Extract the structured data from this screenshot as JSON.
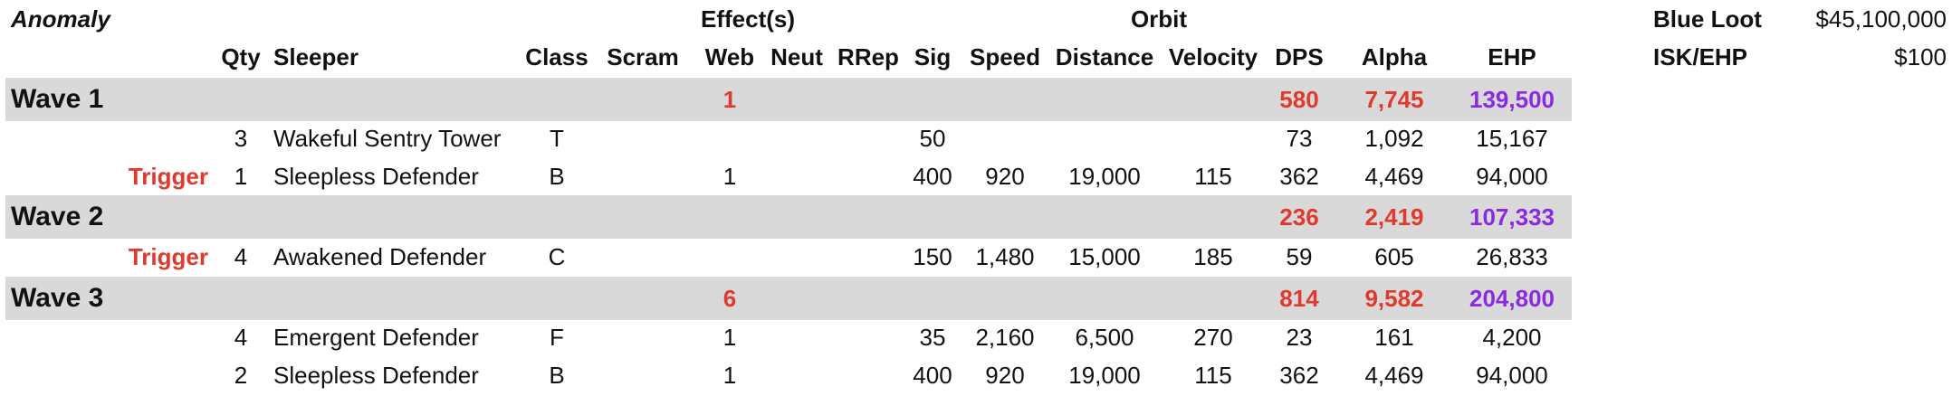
{
  "header": {
    "anomaly": "Anomaly",
    "effects": "Effect(s)",
    "orbit": "Orbit",
    "columns": {
      "qty": "Qty",
      "sleeper": "Sleeper",
      "class": "Class",
      "scram": "Scram",
      "web": "Web",
      "neut": "Neut",
      "rrep": "RRep",
      "sig": "Sig",
      "speed": "Speed",
      "distance": "Distance",
      "velocity": "Velocity",
      "dps": "DPS",
      "alpha": "Alpha",
      "ehp": "EHP"
    }
  },
  "summary": {
    "blue_loot_label": "Blue Loot",
    "blue_loot_value": "$45,100,000",
    "isk_ehp_label": "ISK/EHP",
    "isk_ehp_value": "$100"
  },
  "waves": [
    {
      "name": "Wave 1",
      "web": "1",
      "dps": "580",
      "alpha": "7,745",
      "ehp": "139,500",
      "rows": [
        {
          "trigger": "",
          "qty": "3",
          "sleeper": "Wakeful Sentry Tower",
          "class": "T",
          "web": "",
          "sig": "50",
          "speed": "",
          "distance": "",
          "velocity": "",
          "dps": "73",
          "alpha": "1,092",
          "ehp": "15,167"
        },
        {
          "trigger": "Trigger",
          "qty": "1",
          "sleeper": "Sleepless Defender",
          "class": "B",
          "web": "1",
          "sig": "400",
          "speed": "920",
          "distance": "19,000",
          "velocity": "115",
          "dps": "362",
          "alpha": "4,469",
          "ehp": "94,000"
        }
      ]
    },
    {
      "name": "Wave 2",
      "web": "",
      "dps": "236",
      "alpha": "2,419",
      "ehp": "107,333",
      "rows": [
        {
          "trigger": "Trigger",
          "qty": "4",
          "sleeper": "Awakened Defender",
          "class": "C",
          "web": "",
          "sig": "150",
          "speed": "1,480",
          "distance": "15,000",
          "velocity": "185",
          "dps": "59",
          "alpha": "605",
          "ehp": "26,833"
        }
      ]
    },
    {
      "name": "Wave 3",
      "web": "6",
      "dps": "814",
      "alpha": "9,582",
      "ehp": "204,800",
      "rows": [
        {
          "trigger": "",
          "qty": "4",
          "sleeper": "Emergent Defender",
          "class": "F",
          "web": "1",
          "sig": "35",
          "speed": "2,160",
          "distance": "6,500",
          "velocity": "270",
          "dps": "23",
          "alpha": "161",
          "ehp": "4,200"
        },
        {
          "trigger": "",
          "qty": "2",
          "sleeper": "Sleepless Defender",
          "class": "B",
          "web": "1",
          "sig": "400",
          "speed": "920",
          "distance": "19,000",
          "velocity": "115",
          "dps": "362",
          "alpha": "4,469",
          "ehp": "94,000"
        }
      ]
    }
  ]
}
